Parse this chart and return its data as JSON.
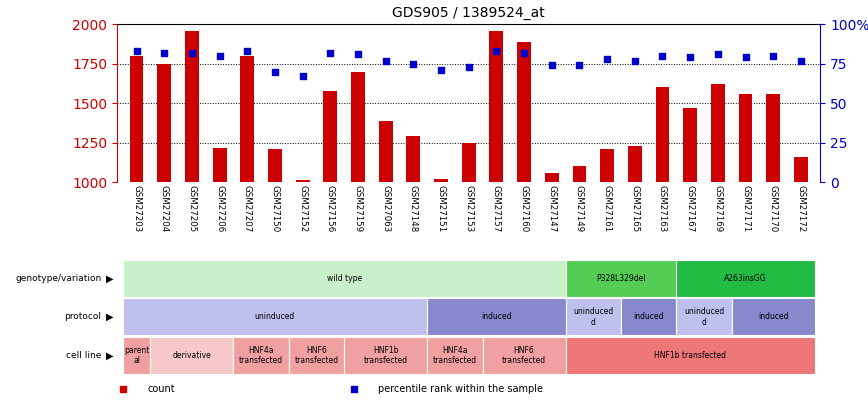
{
  "title": "GDS905 / 1389524_at",
  "samples": [
    "GSM27203",
    "GSM27204",
    "GSM27205",
    "GSM27206",
    "GSM27207",
    "GSM27150",
    "GSM27152",
    "GSM27156",
    "GSM27159",
    "GSM27063",
    "GSM27148",
    "GSM27151",
    "GSM27153",
    "GSM27157",
    "GSM27160",
    "GSM27147",
    "GSM27149",
    "GSM27161",
    "GSM27165",
    "GSM27163",
    "GSM27167",
    "GSM27169",
    "GSM27171",
    "GSM27170",
    "GSM27172"
  ],
  "counts": [
    1800,
    1750,
    1960,
    1220,
    1800,
    1210,
    1015,
    1580,
    1700,
    1390,
    1290,
    1020,
    1250,
    1960,
    1890,
    1060,
    1100,
    1210,
    1230,
    1600,
    1470,
    1620,
    1560,
    1560,
    1160
  ],
  "percentile": [
    83,
    82,
    82,
    80,
    83,
    70,
    67,
    82,
    81,
    77,
    75,
    71,
    73,
    83,
    82,
    74,
    74,
    78,
    77,
    80,
    79,
    81,
    79,
    80,
    77
  ],
  "ylim_left": [
    1000,
    2000
  ],
  "ylim_right": [
    0,
    100
  ],
  "yticks_left": [
    1000,
    1250,
    1500,
    1750,
    2000
  ],
  "yticks_right": [
    0,
    25,
    50,
    75,
    100
  ],
  "bar_color": "#cc0000",
  "dot_color": "#0000cc",
  "annotation_rows": [
    {
      "label": "genotype/variation",
      "segments": [
        {
          "text": "wild type",
          "start": 0,
          "end": 16,
          "color": "#c8f0c8"
        },
        {
          "text": "P328L329del",
          "start": 16,
          "end": 20,
          "color": "#55cc55"
        },
        {
          "text": "A263insGG",
          "start": 20,
          "end": 25,
          "color": "#22bb44"
        }
      ]
    },
    {
      "label": "protocol",
      "segments": [
        {
          "text": "uninduced",
          "start": 0,
          "end": 11,
          "color": "#c0c0ee"
        },
        {
          "text": "induced",
          "start": 11,
          "end": 16,
          "color": "#8888cc"
        },
        {
          "text": "uninduced\nd",
          "start": 16,
          "end": 18,
          "color": "#c0c0ee"
        },
        {
          "text": "induced",
          "start": 18,
          "end": 20,
          "color": "#8888cc"
        },
        {
          "text": "uninduced\nd",
          "start": 20,
          "end": 22,
          "color": "#c0c0ee"
        },
        {
          "text": "induced",
          "start": 22,
          "end": 25,
          "color": "#8888cc"
        }
      ]
    },
    {
      "label": "cell line",
      "segments": [
        {
          "text": "parent\nal",
          "start": 0,
          "end": 1,
          "color": "#f0a0a0"
        },
        {
          "text": "derivative",
          "start": 1,
          "end": 4,
          "color": "#f8c8c8"
        },
        {
          "text": "HNF4a\ntransfected",
          "start": 4,
          "end": 6,
          "color": "#f0a0a0"
        },
        {
          "text": "HNF6\ntransfected",
          "start": 6,
          "end": 8,
          "color": "#f0a0a0"
        },
        {
          "text": "HNF1b\ntransfected",
          "start": 8,
          "end": 11,
          "color": "#f0a0a0"
        },
        {
          "text": "HNF4a\ntransfected",
          "start": 11,
          "end": 13,
          "color": "#f0a0a0"
        },
        {
          "text": "HNF6\ntransfected",
          "start": 13,
          "end": 16,
          "color": "#f0a0a0"
        },
        {
          "text": "HNF1b transfected",
          "start": 16,
          "end": 25,
          "color": "#ee7777"
        }
      ]
    }
  ],
  "legend_items": [
    {
      "label": "count",
      "color": "#cc0000"
    },
    {
      "label": "percentile rank within the sample",
      "color": "#0000cc"
    }
  ]
}
